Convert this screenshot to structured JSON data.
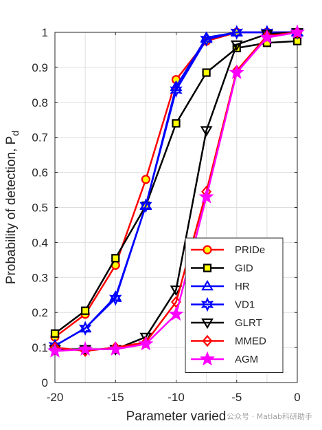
{
  "chart_data": {
    "type": "line",
    "title": "",
    "xlabel": "Parameter varied",
    "ylabel": "Probability of detection, P",
    "ylabel_subscript": "d",
    "xlim": [
      -20,
      0
    ],
    "ylim": [
      0,
      1
    ],
    "xticks": [
      "-20",
      "-15",
      "-10",
      "-5",
      "0"
    ],
    "yticks": [
      "0",
      "0.1",
      "0.2",
      "0.3",
      "0.4",
      "0.5",
      "0.6",
      "0.7",
      "0.8",
      "0.9",
      "1"
    ],
    "xtick_values": [
      -20,
      -15,
      -10,
      -5,
      0
    ],
    "ytick_values": [
      0,
      0.1,
      0.2,
      0.3,
      0.4,
      0.5,
      0.6,
      0.7,
      0.8,
      0.9,
      1
    ],
    "grid": true,
    "legend_position": "lower-right",
    "x": [
      -20,
      -17.5,
      -15,
      -12.5,
      -10,
      -7.5,
      -5,
      -2.5,
      0
    ],
    "series": [
      {
        "name": "PRIDe",
        "color": "#ff0000",
        "markerFill": "#ffff00",
        "marker": "circle",
        "values": [
          0.13,
          0.195,
          0.335,
          0.58,
          0.865,
          0.975,
          1.0,
          1.0,
          1.0
        ]
      },
      {
        "name": "GID",
        "color": "#000000",
        "markerFill": "#ffff00",
        "marker": "square",
        "values": [
          0.14,
          0.205,
          0.355,
          0.505,
          0.74,
          0.885,
          0.955,
          0.97,
          0.975
        ]
      },
      {
        "name": "HR",
        "color": "#0000ff",
        "markerFill": "none",
        "marker": "triangle-up",
        "values": [
          0.105,
          0.155,
          0.245,
          0.505,
          0.845,
          0.985,
          1.0,
          1.0,
          1.0
        ]
      },
      {
        "name": "VD1",
        "color": "#0000ff",
        "markerFill": "none",
        "marker": "hexagram",
        "values": [
          0.105,
          0.155,
          0.24,
          0.505,
          0.835,
          0.98,
          1.0,
          1.0,
          1.0
        ]
      },
      {
        "name": "GLRT",
        "color": "#000000",
        "markerFill": "none",
        "marker": "triangle-down",
        "values": [
          0.095,
          0.095,
          0.095,
          0.13,
          0.265,
          0.72,
          0.965,
          0.995,
          1.0
        ]
      },
      {
        "name": "MMED",
        "color": "#ff0000",
        "markerFill": "none",
        "marker": "diamond",
        "values": [
          0.1,
          0.09,
          0.1,
          0.115,
          0.23,
          0.545,
          0.89,
          0.99,
          1.0
        ]
      },
      {
        "name": "AGM",
        "color": "#ff00ff",
        "markerFill": "#ff00ff",
        "marker": "pentagram",
        "values": [
          0.09,
          0.095,
          0.095,
          0.11,
          0.195,
          0.53,
          0.885,
          0.985,
          1.0
        ]
      }
    ]
  },
  "watermark": "公众号 · Matlab科研助手"
}
